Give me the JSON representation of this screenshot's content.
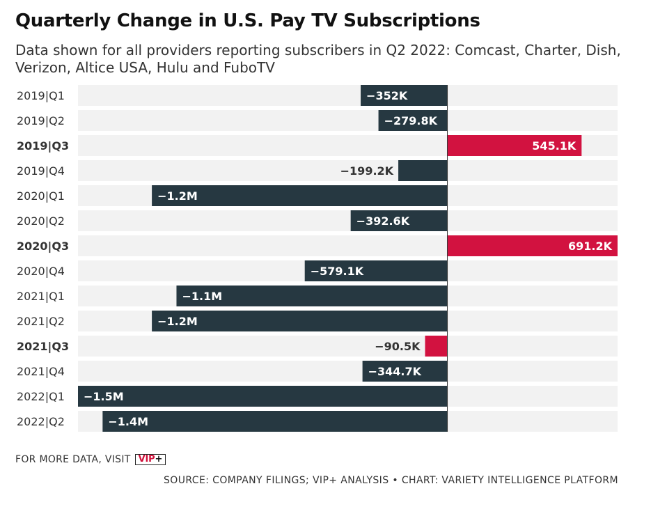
{
  "title": "Quarterly Change in U.S. Pay TV Subscriptions",
  "subtitle": "Data shown for all providers reporting subscribers in Q2 2022: Comcast, Charter, Dish, Verizon, Altice USA, Hulu and FuboTV",
  "footer": {
    "more_data": "FOR MORE DATA, VISIT",
    "vip_label": "VIP",
    "vip_plus": "+",
    "source": "SOURCE: COMPANY FILINGS; VIP+ ANALYSIS • CHART: VARIETY INTELLIGENCE PLATFORM"
  },
  "colors": {
    "negative": "#263841",
    "positive": "#d21240",
    "row_background": "#f2f2f2",
    "zero_line": "#333333"
  },
  "chart_data": {
    "type": "bar",
    "orientation": "horizontal",
    "categories": [
      "2019|Q1",
      "2019|Q2",
      "2019|Q3",
      "2019|Q4",
      "2020|Q1",
      "2020|Q2",
      "2020|Q3",
      "2020|Q4",
      "2021|Q1",
      "2021|Q2",
      "2021|Q3",
      "2021|Q4",
      "2022|Q1",
      "2022|Q2"
    ],
    "bold_categories": [
      "2019|Q3",
      "2020|Q3",
      "2021|Q3"
    ],
    "values": [
      -352,
      -279.8,
      545.1,
      -199.2,
      -1200,
      -392.6,
      691.2,
      -579.1,
      -1100,
      -1200,
      -90.5,
      -344.7,
      -1500,
      -1400
    ],
    "value_unit": "thousands",
    "labels": [
      "−352K",
      "−279.8K",
      "545.1K",
      "−199.2K",
      "−1.2M",
      "−392.6K",
      "691.2K",
      "−579.1K",
      "−1.1M",
      "−1.2M",
      "−90.5K",
      "−344.7K",
      "−1.5M",
      "−1.4M"
    ],
    "highlighted": [
      false,
      false,
      true,
      false,
      false,
      false,
      true,
      false,
      false,
      false,
      true,
      false,
      false,
      false
    ],
    "xlim": [
      -1500,
      691.2
    ],
    "grid": false,
    "legend": "none"
  }
}
